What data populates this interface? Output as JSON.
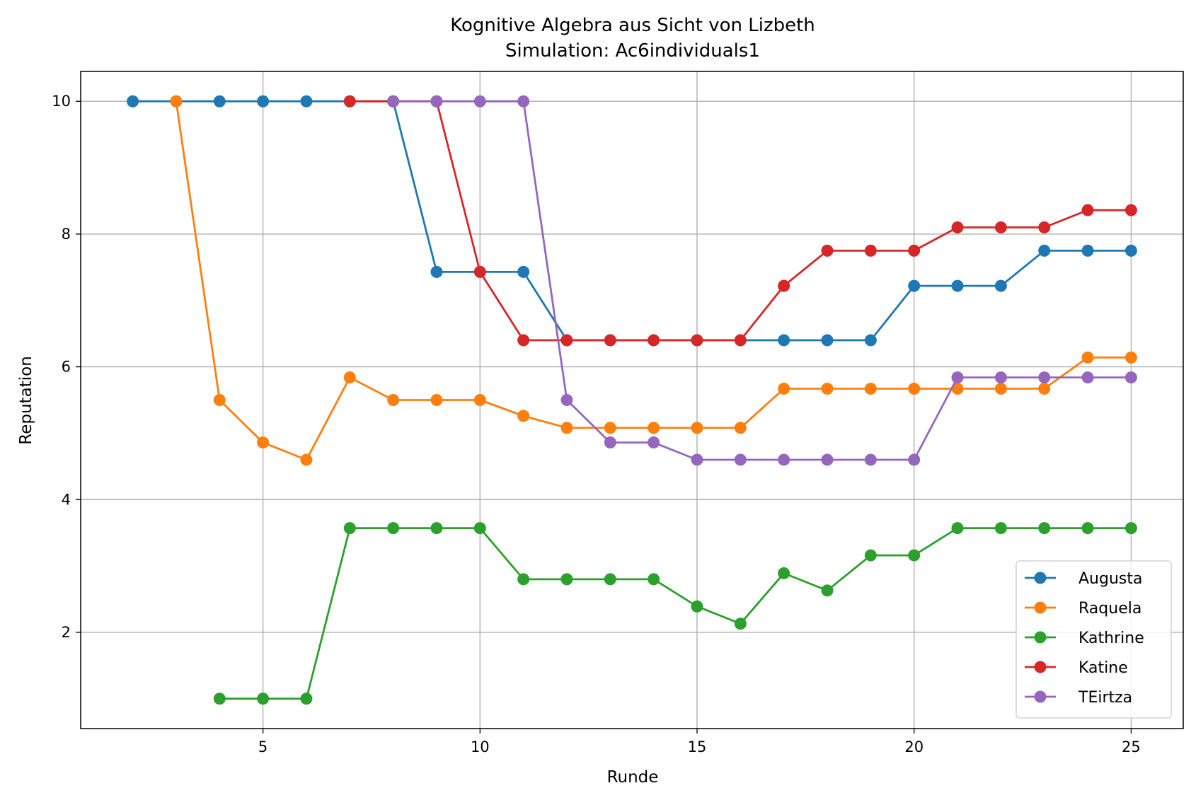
{
  "chart_data": {
    "type": "line",
    "title": "Kognitive Algebra aus Sicht von Lizbeth",
    "subtitle": "Simulation: Ac6individuals1",
    "xlabel": "Runde",
    "ylabel": "Reputation",
    "xlim": [
      0.8,
      26.2
    ],
    "ylim": [
      0.55,
      10.45
    ],
    "xticks": [
      5,
      10,
      15,
      20,
      25
    ],
    "yticks": [
      2,
      4,
      6,
      8,
      10
    ],
    "grid": true,
    "legend_position": "lower right",
    "series": [
      {
        "name": "Augusta",
        "color": "#1f77b4",
        "x": [
          2,
          3,
          4,
          5,
          6,
          7,
          8,
          9,
          10,
          11,
          12,
          13,
          14,
          15,
          16,
          17,
          18,
          19,
          20,
          21,
          22,
          23,
          24,
          25
        ],
        "y": [
          10,
          10,
          10,
          10,
          10,
          10,
          10,
          7.43,
          7.43,
          7.43,
          6.4,
          6.4,
          6.4,
          6.4,
          6.4,
          6.4,
          6.4,
          6.4,
          7.22,
          7.22,
          7.22,
          7.75,
          7.75,
          7.75
        ]
      },
      {
        "name": "Raquela",
        "color": "#ff7f0e",
        "x": [
          3,
          4,
          5,
          6,
          7,
          8,
          9,
          10,
          11,
          12,
          13,
          14,
          15,
          16,
          17,
          18,
          19,
          20,
          21,
          22,
          23,
          24,
          25
        ],
        "y": [
          10,
          5.5,
          4.86,
          4.6,
          5.84,
          5.5,
          5.5,
          5.5,
          5.26,
          5.08,
          5.08,
          5.08,
          5.08,
          5.08,
          5.67,
          5.67,
          5.67,
          5.67,
          5.67,
          5.67,
          5.67,
          6.14,
          6.14
        ]
      },
      {
        "name": "Kathrine",
        "color": "#2ca02c",
        "x": [
          4,
          5,
          6,
          7,
          8,
          9,
          10,
          11,
          12,
          13,
          14,
          15,
          16,
          17,
          18,
          19,
          20,
          21,
          22,
          23,
          24,
          25
        ],
        "y": [
          1,
          1,
          1,
          3.57,
          3.57,
          3.57,
          3.57,
          2.8,
          2.8,
          2.8,
          2.8,
          2.39,
          2.13,
          2.89,
          2.63,
          3.16,
          3.16,
          3.57,
          3.57,
          3.57,
          3.57,
          3.57
        ]
      },
      {
        "name": "Katine",
        "color": "#d62728",
        "x": [
          7,
          8,
          9,
          10,
          11,
          12,
          13,
          14,
          15,
          16,
          17,
          18,
          19,
          20,
          21,
          22,
          23,
          24,
          25
        ],
        "y": [
          10,
          10,
          10,
          7.43,
          6.4,
          6.4,
          6.4,
          6.4,
          6.4,
          6.4,
          7.22,
          7.75,
          7.75,
          7.75,
          8.1,
          8.1,
          8.1,
          8.36,
          8.36
        ]
      },
      {
        "name": "TEirtza",
        "color": "#9467bd",
        "x": [
          8,
          9,
          10,
          11,
          12,
          13,
          14,
          15,
          16,
          17,
          18,
          19,
          20,
          21,
          22,
          23,
          24,
          25
        ],
        "y": [
          10,
          10,
          10,
          10,
          5.5,
          4.86,
          4.86,
          4.6,
          4.6,
          4.6,
          4.6,
          4.6,
          4.6,
          5.84,
          5.84,
          5.84,
          5.84,
          5.84
        ]
      }
    ]
  }
}
